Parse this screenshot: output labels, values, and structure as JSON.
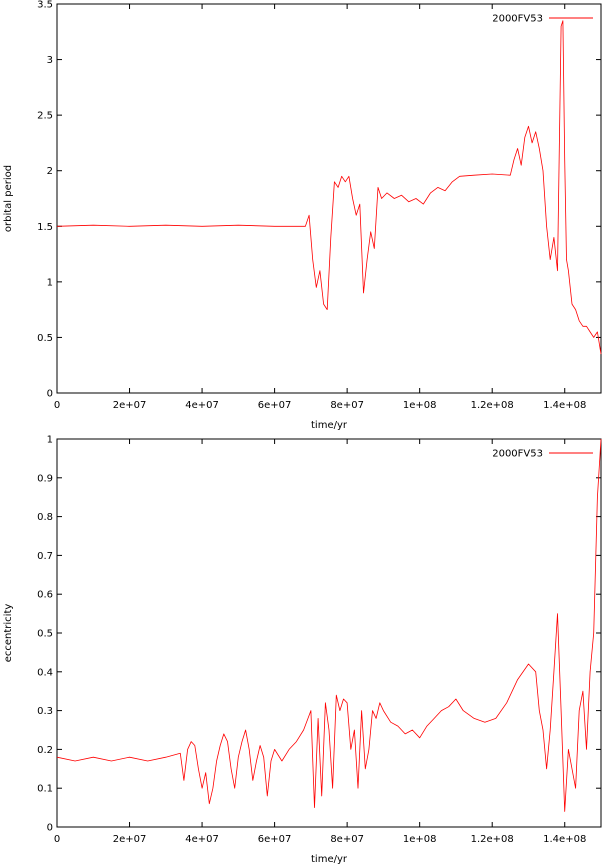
{
  "chart_data": [
    {
      "type": "line",
      "xlabel": "time/yr",
      "ylabel": "orbital period",
      "xlim": [
        0,
        150000000
      ],
      "ylim": [
        0,
        3.5
      ],
      "xticks": [
        0,
        20000000,
        40000000,
        60000000,
        80000000,
        100000000,
        120000000,
        140000000
      ],
      "xtick_labels": [
        "0",
        "2e+07",
        "4e+07",
        "6e+07",
        "8e+07",
        "1e+08",
        "1.2e+08",
        "1.4e+08"
      ],
      "yticks": [
        0,
        0.5,
        1,
        1.5,
        2,
        2.5,
        3,
        3.5
      ],
      "ytick_labels": [
        "0",
        "0.5",
        "1",
        "1.5",
        "2",
        "2.5",
        "3",
        "3.5"
      ],
      "grid": false,
      "legend_position": "top-right",
      "series": [
        {
          "name": "2000FV53",
          "color": "#ff0000",
          "x": [
            0,
            10000000,
            20000000,
            30000000,
            40000000,
            50000000,
            60000000,
            68500000,
            69500000,
            70500000,
            71500000,
            72500000,
            73500000,
            74500000,
            75500000,
            76500000,
            77500000,
            78500000,
            79500000,
            80500000,
            81500000,
            82500000,
            83500000,
            84500000,
            85500000,
            86500000,
            87500000,
            88500000,
            89500000,
            91000000,
            93000000,
            95000000,
            97000000,
            99000000,
            101000000,
            103000000,
            105000000,
            107000000,
            109000000,
            111000000,
            115000000,
            120000000,
            125000000,
            126000000,
            127000000,
            128000000,
            129000000,
            130000000,
            131000000,
            132000000,
            133000000,
            134000000,
            135000000,
            136000000,
            137000000,
            138000000,
            139000000,
            139500000,
            140000000,
            140500000,
            141000000,
            142000000,
            143000000,
            144000000,
            145000000,
            146000000,
            147000000,
            148000000,
            149000000,
            150000000
          ],
          "values": [
            1.5,
            1.51,
            1.5,
            1.51,
            1.5,
            1.51,
            1.5,
            1.5,
            1.6,
            1.2,
            0.95,
            1.1,
            0.8,
            0.75,
            1.4,
            1.9,
            1.85,
            1.95,
            1.9,
            1.95,
            1.75,
            1.6,
            1.7,
            0.9,
            1.2,
            1.45,
            1.3,
            1.85,
            1.75,
            1.8,
            1.75,
            1.78,
            1.72,
            1.75,
            1.7,
            1.8,
            1.85,
            1.82,
            1.9,
            1.95,
            1.96,
            1.97,
            1.96,
            2.1,
            2.2,
            2.05,
            2.3,
            2.4,
            2.25,
            2.35,
            2.2,
            2.0,
            1.5,
            1.2,
            1.4,
            1.1,
            3.3,
            3.35,
            2.1,
            1.2,
            1.1,
            0.8,
            0.75,
            0.65,
            0.6,
            0.6,
            0.55,
            0.5,
            0.55,
            0.35
          ]
        }
      ]
    },
    {
      "type": "line",
      "xlabel": "time/yr",
      "ylabel": "eccentricity",
      "xlim": [
        0,
        150000000
      ],
      "ylim": [
        0,
        1
      ],
      "xticks": [
        0,
        20000000,
        40000000,
        60000000,
        80000000,
        100000000,
        120000000,
        140000000
      ],
      "xtick_labels": [
        "0",
        "2e+07",
        "4e+07",
        "6e+07",
        "8e+07",
        "1e+08",
        "1.2e+08",
        "1.4e+08"
      ],
      "yticks": [
        0,
        0.1,
        0.2,
        0.3,
        0.4,
        0.5,
        0.6,
        0.7,
        0.8,
        0.9,
        1
      ],
      "ytick_labels": [
        "0",
        "0.1",
        "0.2",
        "0.3",
        "0.4",
        "0.5",
        "0.6",
        "0.7",
        "0.8",
        "0.9",
        "1"
      ],
      "grid": false,
      "legend_position": "top-right",
      "series": [
        {
          "name": "2000FV53",
          "color": "#ff0000",
          "x": [
            0,
            5000000,
            10000000,
            15000000,
            20000000,
            25000000,
            30000000,
            34000000,
            35000000,
            36000000,
            37000000,
            38000000,
            39000000,
            40000000,
            41000000,
            42000000,
            43000000,
            44000000,
            45000000,
            46000000,
            47000000,
            48000000,
            49000000,
            50000000,
            51000000,
            52000000,
            53000000,
            54000000,
            55000000,
            56000000,
            57000000,
            58000000,
            59000000,
            60000000,
            62000000,
            64000000,
            66000000,
            68000000,
            70000000,
            71000000,
            72000000,
            73000000,
            74000000,
            75000000,
            76000000,
            77000000,
            78000000,
            79000000,
            80000000,
            81000000,
            82000000,
            83000000,
            84000000,
            85000000,
            86000000,
            87000000,
            88000000,
            89000000,
            90000000,
            92000000,
            94000000,
            96000000,
            98000000,
            100000000,
            102000000,
            104000000,
            106000000,
            108000000,
            110000000,
            112000000,
            115000000,
            118000000,
            121000000,
            124000000,
            127000000,
            130000000,
            132000000,
            133000000,
            134000000,
            135000000,
            136000000,
            137000000,
            138000000,
            139000000,
            140000000,
            141000000,
            142000000,
            143000000,
            144000000,
            145000000,
            146000000,
            147000000,
            148000000,
            149000000,
            150000000
          ],
          "values": [
            0.18,
            0.17,
            0.18,
            0.17,
            0.18,
            0.17,
            0.18,
            0.19,
            0.12,
            0.2,
            0.22,
            0.21,
            0.15,
            0.1,
            0.14,
            0.06,
            0.1,
            0.17,
            0.21,
            0.24,
            0.22,
            0.15,
            0.1,
            0.18,
            0.22,
            0.25,
            0.2,
            0.12,
            0.17,
            0.21,
            0.18,
            0.08,
            0.17,
            0.2,
            0.17,
            0.2,
            0.22,
            0.25,
            0.3,
            0.05,
            0.28,
            0.08,
            0.32,
            0.25,
            0.1,
            0.34,
            0.3,
            0.33,
            0.32,
            0.2,
            0.25,
            0.1,
            0.3,
            0.15,
            0.2,
            0.3,
            0.28,
            0.32,
            0.3,
            0.27,
            0.26,
            0.24,
            0.25,
            0.23,
            0.26,
            0.28,
            0.3,
            0.31,
            0.33,
            0.3,
            0.28,
            0.27,
            0.28,
            0.32,
            0.38,
            0.42,
            0.4,
            0.3,
            0.25,
            0.15,
            0.25,
            0.4,
            0.55,
            0.3,
            0.04,
            0.2,
            0.15,
            0.1,
            0.3,
            0.35,
            0.2,
            0.4,
            0.5,
            0.85,
            1.0
          ]
        }
      ]
    }
  ]
}
